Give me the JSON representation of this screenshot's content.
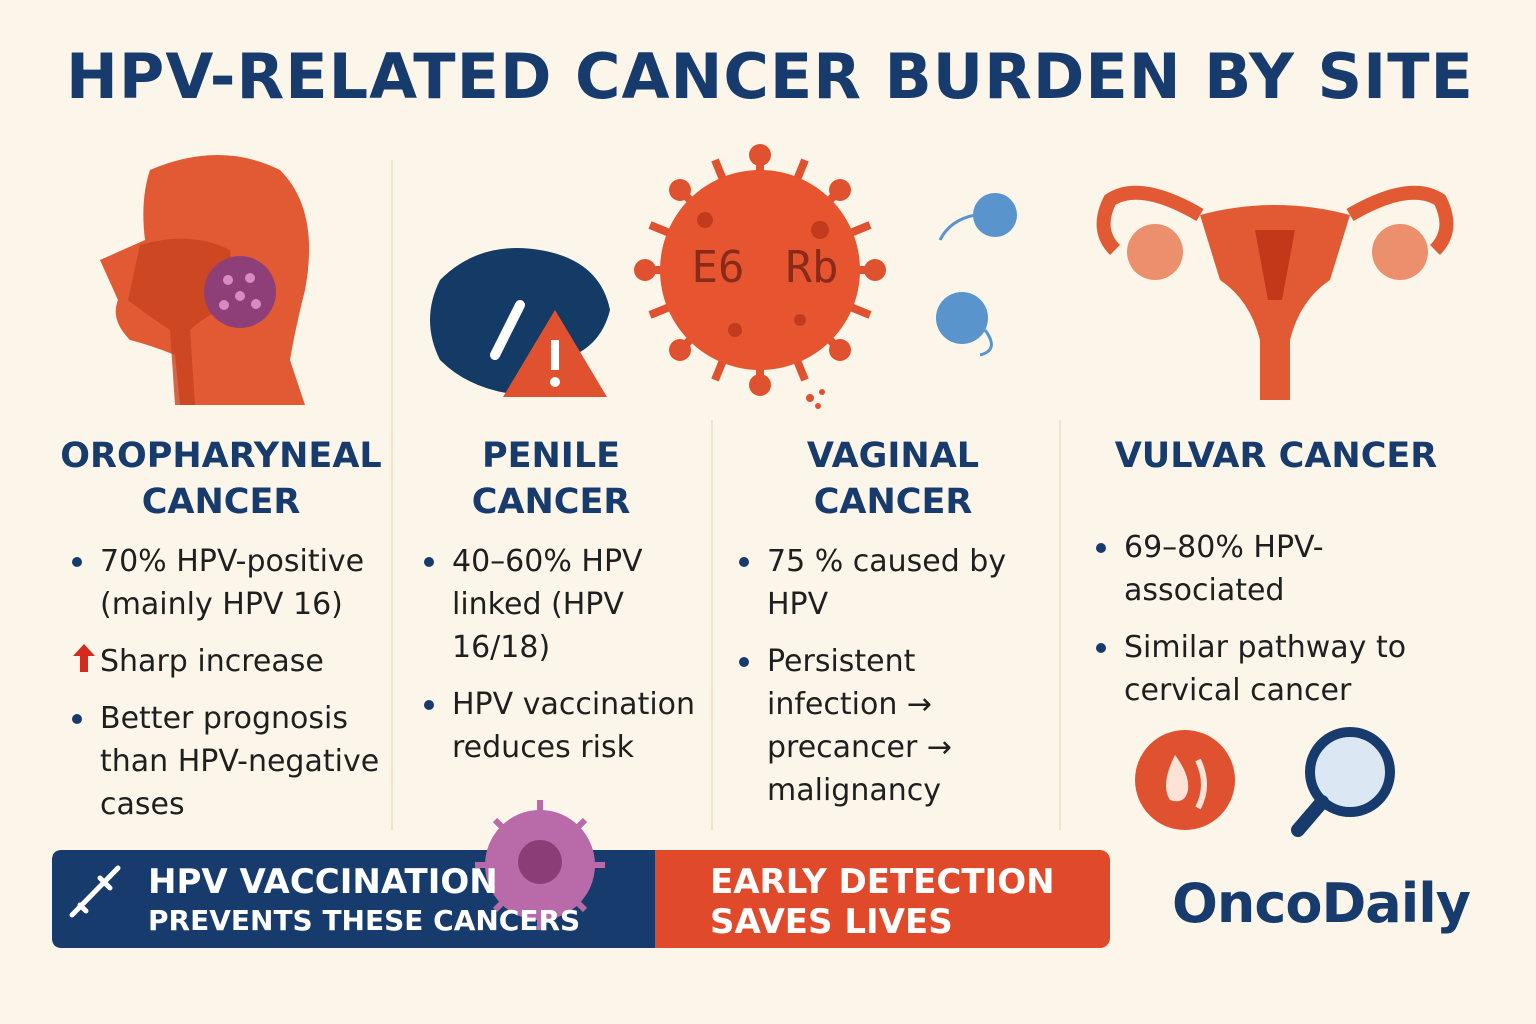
{
  "header": {
    "title": "HPV-RELATED CANCER BURDEN BY SITE"
  },
  "illustration": {
    "virus_labels": [
      "E6",
      "Rb"
    ]
  },
  "sections": [
    {
      "title": "OROPHARYNEAL CANCER",
      "bullets": [
        "70% HPV-positive (mainly HPV 16)",
        "Sharp increase",
        "Better prognosis than HPV-negative cases"
      ]
    },
    {
      "title": "PENILE CANCER",
      "bullets": [
        "40–60% HPV linked (HPV 16/18)",
        "HPV vaccination reduces risk"
      ]
    },
    {
      "title": "VAGINAL CANCER",
      "bullets": [
        "75 % caused by HPV",
        "Persistent infection → precancer → malignancy"
      ]
    },
    {
      "title": "VULVAR CANCER",
      "bullets": [
        "69–80% HPV-associated",
        "Similar pathway to cervical cancer"
      ]
    }
  ],
  "banner": {
    "left": {
      "line1": "HPV VACCINATION",
      "line2": "PREVENTS THESE CANCERS"
    },
    "right": {
      "line1": "EARLY DETECTION",
      "line2": "SAVES LIVES"
    }
  },
  "logo": "OncoDaily"
}
